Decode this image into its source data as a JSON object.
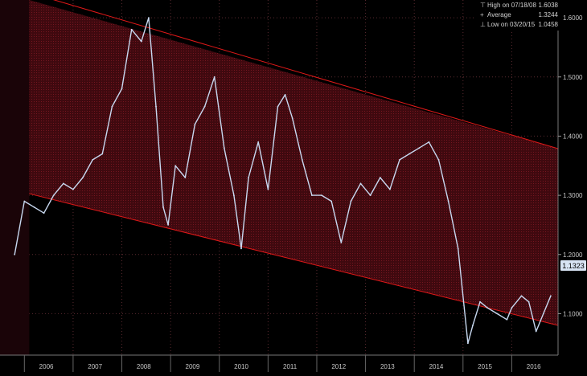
{
  "colors": {
    "background": "#000000",
    "channel_fill": "#4a0a12",
    "channel_line": "#e01818",
    "grid": "#5a2a30",
    "price_line": "#c8d8f0",
    "tick_text": "#c8c8c8",
    "last_price_tag": "#d8e4f4"
  },
  "legend": {
    "high_label": "High on 07/18/08",
    "high_value": "1.6038",
    "avg_label": "Average",
    "avg_value": "1.3244",
    "low_label": "Low on 03/20/15",
    "low_value": "1.0458"
  },
  "last_price": "1.1323",
  "chart_data": {
    "type": "line",
    "ylim": [
      1.03,
      1.63
    ],
    "y_ticks": [
      "1.6000",
      "1.5000",
      "1.4000",
      "1.3000",
      "1.2000",
      "1.1000"
    ],
    "x_ticks": [
      "2006",
      "2007",
      "2008",
      "2009",
      "2010",
      "2011",
      "2012",
      "2013",
      "2014",
      "2015",
      "2016"
    ],
    "grid": true,
    "legend_position": "top-right",
    "series": [
      {
        "x": [
          2005.8,
          2006.0,
          2006.2,
          2006.4,
          2006.6,
          2006.8,
          2007.0,
          2007.2,
          2007.4,
          2007.6,
          2007.8,
          2008.0,
          2008.2,
          2008.4,
          2008.55,
          2008.7,
          2008.85,
          2008.95,
          2009.1,
          2009.3,
          2009.5,
          2009.7,
          2009.9,
          2010.1,
          2010.3,
          2010.45,
          2010.6,
          2010.8,
          2011.0,
          2011.2,
          2011.35,
          2011.5,
          2011.7,
          2011.9,
          2012.1,
          2012.3,
          2012.5,
          2012.7,
          2012.9,
          2013.1,
          2013.3,
          2013.5,
          2013.7,
          2013.9,
          2014.1,
          2014.3,
          2014.5,
          2014.7,
          2014.9,
          2015.1,
          2015.2,
          2015.35,
          2015.5,
          2015.7,
          2015.9,
          2016.0,
          2016.2,
          2016.35,
          2016.5,
          2016.65,
          2016.8
        ],
        "values": [
          1.2,
          1.29,
          1.28,
          1.27,
          1.3,
          1.32,
          1.31,
          1.33,
          1.36,
          1.37,
          1.45,
          1.48,
          1.58,
          1.56,
          1.6,
          1.45,
          1.28,
          1.25,
          1.35,
          1.33,
          1.42,
          1.45,
          1.5,
          1.38,
          1.3,
          1.21,
          1.33,
          1.39,
          1.31,
          1.45,
          1.47,
          1.43,
          1.36,
          1.3,
          1.3,
          1.29,
          1.22,
          1.29,
          1.32,
          1.3,
          1.33,
          1.31,
          1.36,
          1.37,
          1.38,
          1.39,
          1.36,
          1.29,
          1.21,
          1.05,
          1.08,
          1.12,
          1.11,
          1.1,
          1.09,
          1.11,
          1.13,
          1.12,
          1.07,
          1.1,
          1.13
        ]
      }
    ]
  }
}
